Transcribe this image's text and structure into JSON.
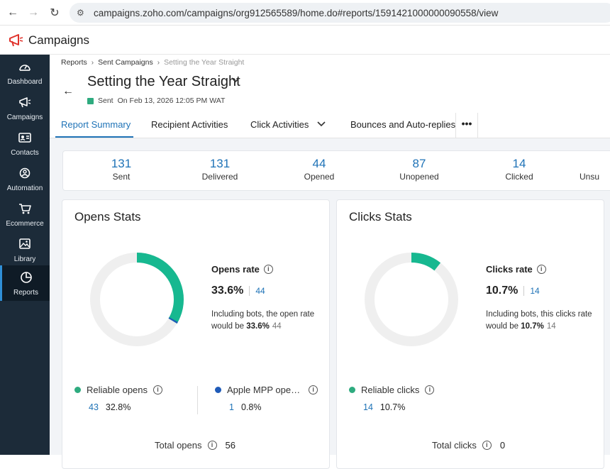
{
  "browser": {
    "url": "campaigns.zoho.com/campaigns/org912565589/home.do#reports/1591421000000090558/view"
  },
  "app": {
    "title": "Campaigns"
  },
  "sidebar": {
    "items": [
      {
        "label": "Dashboard",
        "icon": "dashboard-icon"
      },
      {
        "label": "Campaigns",
        "icon": "megaphone-icon"
      },
      {
        "label": "Contacts",
        "icon": "contact-card-icon"
      },
      {
        "label": "Automation",
        "icon": "automation-icon"
      },
      {
        "label": "Ecommerce",
        "icon": "cart-icon"
      },
      {
        "label": "Library",
        "icon": "image-library-icon"
      },
      {
        "label": "Reports",
        "icon": "pie-chart-icon"
      }
    ],
    "active": "Reports",
    "active_color": "#2f8fd7"
  },
  "breadcrumb": {
    "items": [
      "Reports",
      "Sent Campaigns",
      "Setting the Year Straight"
    ]
  },
  "page": {
    "title": "Setting the Year Straight",
    "status": "Sent",
    "sent_on": "On Feb 13, 2026 12:05 PM WAT",
    "status_color": "#2eab7f"
  },
  "tabs": {
    "items": [
      "Report Summary",
      "Recipient Activities",
      "Click Activities",
      "Bounces and Auto-replies"
    ],
    "more": "•••",
    "accent": "#1f73b7"
  },
  "summary": {
    "items": [
      {
        "value": "131",
        "label": "Sent"
      },
      {
        "value": "131",
        "label": "Delivered"
      },
      {
        "value": "44",
        "label": "Opened"
      },
      {
        "value": "87",
        "label": "Unopened"
      },
      {
        "value": "14",
        "label": "Clicked"
      },
      {
        "value": "",
        "label": "Unsu"
      }
    ]
  },
  "opens": {
    "title": "Opens Stats",
    "rate_title": "Opens rate",
    "rate_pct": "33.6%",
    "rate_count": "44",
    "note_prefix": "Including bots, the open rate would be",
    "note_pct": "33.6%",
    "note_count": "44",
    "donut_fraction": 0.336,
    "donut_color": "#17b890",
    "reliable_label": "Reliable opens",
    "reliable_count": "43",
    "reliable_pct": "32.8%",
    "reliable_color": "#2eab7f",
    "apple_label": "Apple MPP ope…",
    "apple_count": "1",
    "apple_pct": "0.8%",
    "apple_color": "#1f5bb8",
    "total_label": "Total opens",
    "total_value": "56"
  },
  "clicks": {
    "title": "Clicks Stats",
    "rate_title": "Clicks rate",
    "rate_pct": "10.7%",
    "rate_count": "14",
    "note_prefix": "Including bots, this clicks rate would be",
    "note_pct": "10.7%",
    "note_count": "14",
    "donut_fraction": 0.107,
    "donut_color": "#17b890",
    "reliable_label": "Reliable clicks",
    "reliable_count": "14",
    "reliable_pct": "10.7%",
    "reliable_color": "#2eab7f",
    "total_label": "Total clicks",
    "total_value": "0"
  }
}
